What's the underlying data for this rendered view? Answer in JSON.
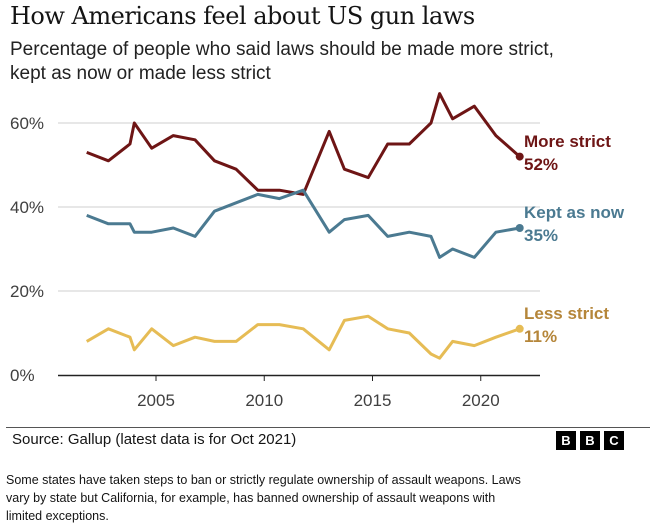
{
  "header": {
    "title": "How Americans feel about US gun laws",
    "subtitle": "Percentage of people who said laws should be made more strict, kept as now or made less strict"
  },
  "chart_data": {
    "type": "line",
    "title": "How Americans feel about US gun laws",
    "subtitle": "Percentage of people who said laws should be made more strict, kept as now or made less strict",
    "xlabel": "",
    "ylabel": "",
    "xlim": [
      2001.5,
      2022.5
    ],
    "ylim": [
      0,
      65
    ],
    "x_ticks": [
      2005,
      2010,
      2015,
      2020
    ],
    "x_tick_labels": [
      "2005",
      "2010",
      "2015",
      "2020"
    ],
    "y_ticks": [
      0,
      20,
      40,
      60
    ],
    "y_tick_labels": [
      "0%",
      "20%",
      "40%",
      "60%"
    ],
    "grid": "horizontal",
    "legend": "direct labels at line ends (right)",
    "x": [
      2001.8,
      2002.8,
      2003.8,
      2004.0,
      2004.8,
      2005.8,
      2006.8,
      2007.7,
      2008.7,
      2009.7,
      2010.7,
      2011.8,
      2013.0,
      2013.7,
      2014.8,
      2015.7,
      2016.7,
      2017.7,
      2018.1,
      2018.7,
      2019.7,
      2020.7,
      2021.8
    ],
    "series": [
      {
        "name": "More strict",
        "end_label": "52%",
        "color": "#6e1515",
        "label_color": "#6e1515",
        "values": [
          53,
          51,
          55,
          60,
          54,
          57,
          56,
          51,
          49,
          44,
          44,
          43,
          58,
          49,
          47,
          55,
          55,
          60,
          67,
          61,
          64,
          57,
          52
        ]
      },
      {
        "name": "Kept as now",
        "end_label": "35%",
        "color": "#4b7a91",
        "label_color": "#4b7a91",
        "values": [
          38,
          36,
          36,
          34,
          34,
          35,
          33,
          39,
          41,
          43,
          42,
          44,
          34,
          37,
          38,
          33,
          34,
          33,
          28,
          30,
          28,
          34,
          35
        ]
      },
      {
        "name": "Less strict",
        "end_label": "11%",
        "color": "#e6bc55",
        "label_color": "#b5863a",
        "values": [
          8,
          11,
          9,
          6,
          11,
          7,
          9,
          8,
          8,
          12,
          12,
          11,
          6,
          13,
          14,
          11,
          10,
          5,
          4,
          8,
          7,
          9,
          11
        ]
      }
    ]
  },
  "footer": {
    "source": "Source: Gallup (latest data is for Oct 2021)",
    "logo": [
      "B",
      "B",
      "C"
    ],
    "note": "Some states have taken steps to ban or strictly regulate ownership of assault weapons. Laws vary by state but California, for example, has banned ownership of assault weapons with limited exceptions."
  }
}
